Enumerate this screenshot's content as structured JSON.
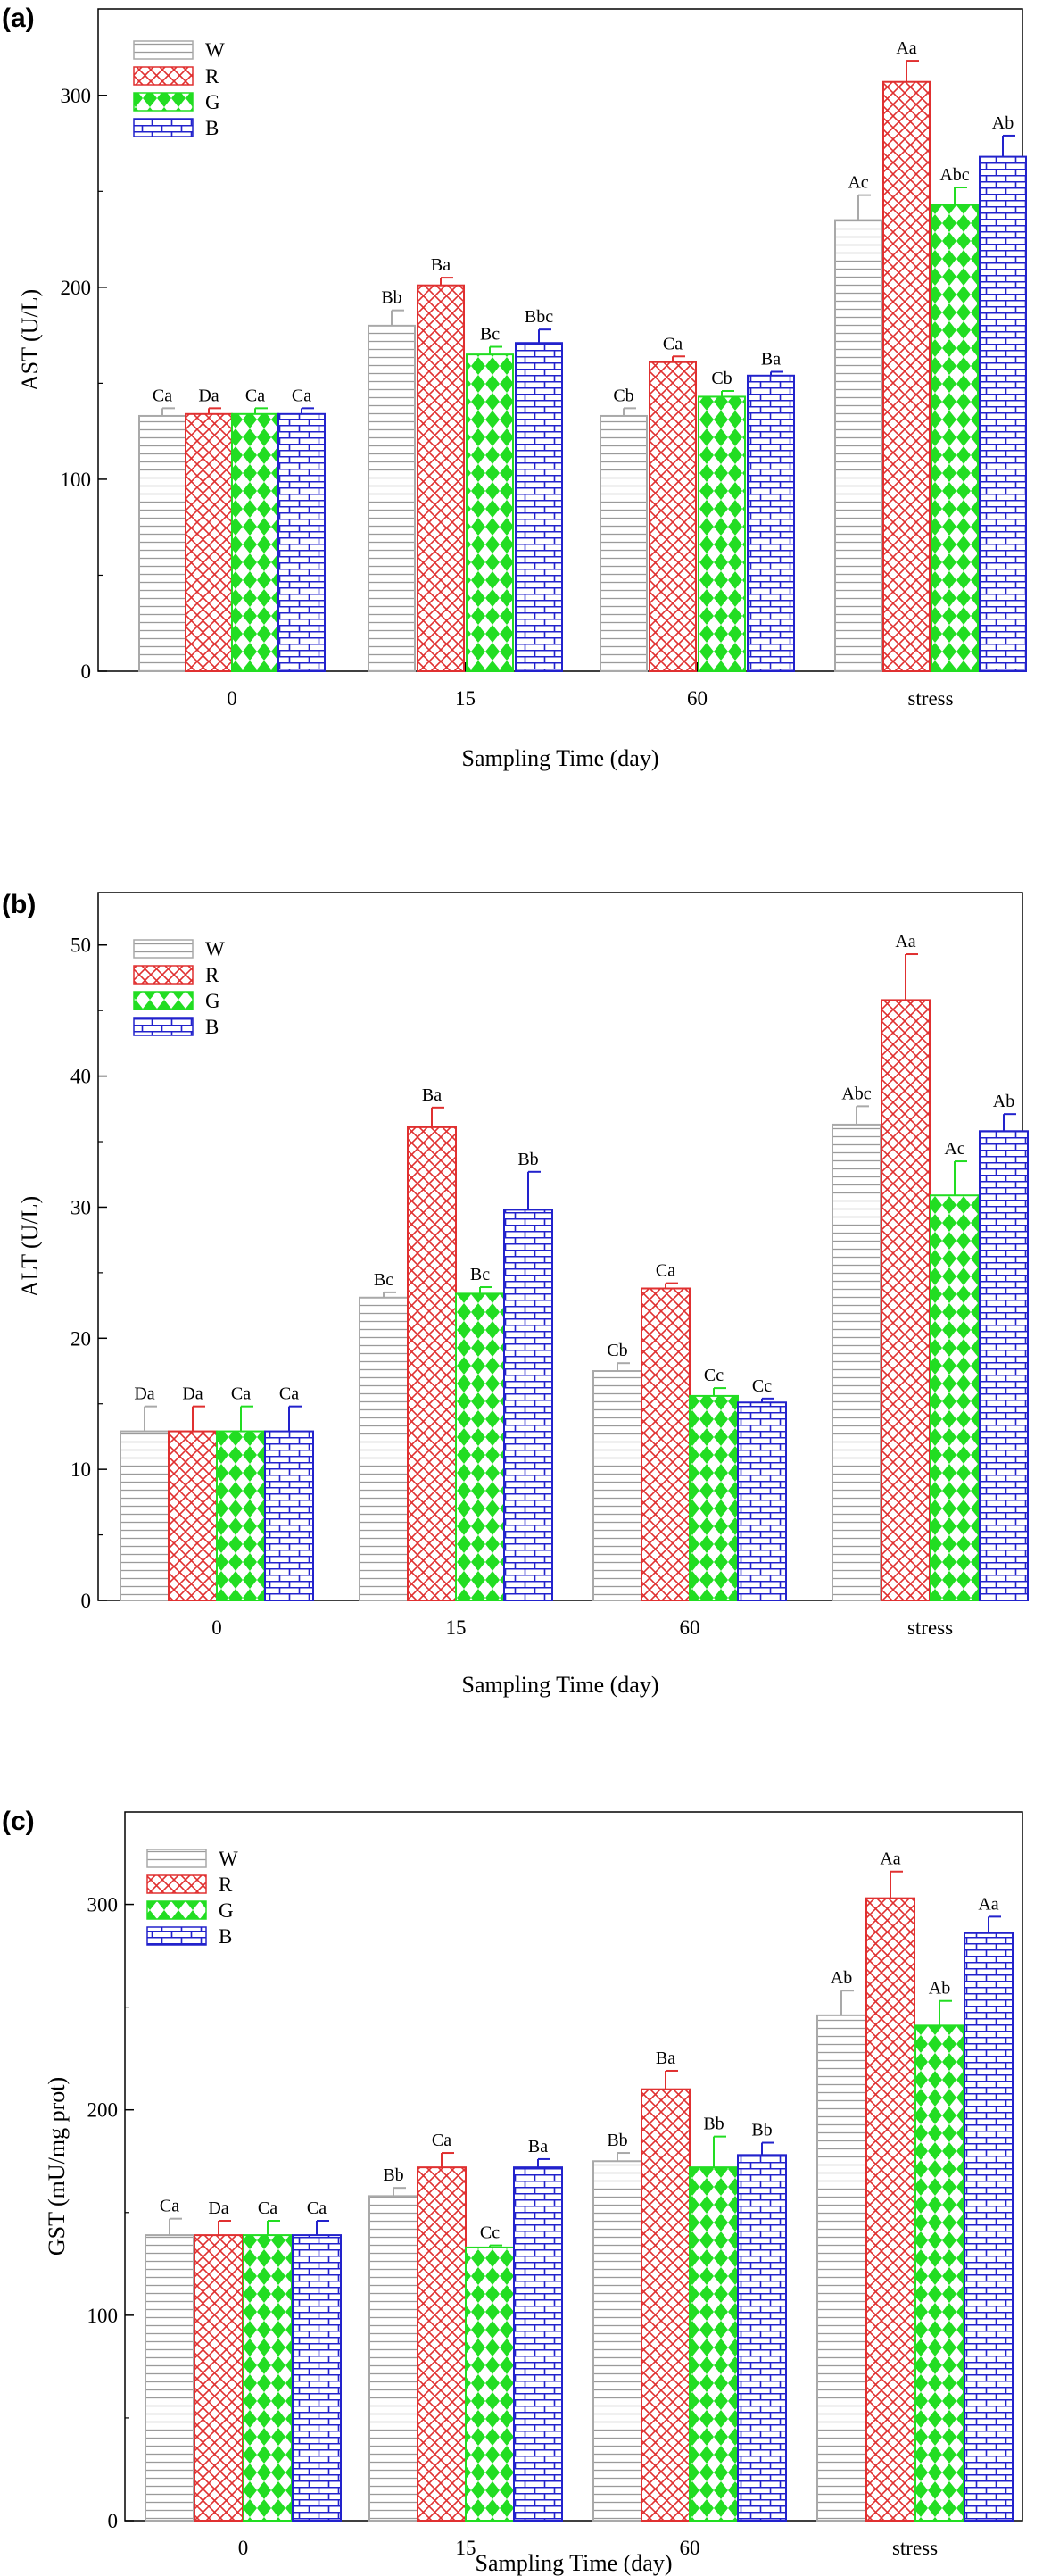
{
  "colors": {
    "W": "#a9a9a9",
    "R": "#e03030",
    "G": "#22dd22",
    "B": "#2222cc"
  },
  "chart_data": [
    {
      "type": "bar",
      "panel_label": "(a)",
      "xlabel": "Sampling Time (day)",
      "ylabel": "AST (U/L)",
      "categories": [
        "0",
        "15",
        "60",
        "stress"
      ],
      "ylim": [
        0,
        345
      ],
      "yticks": [
        0,
        100,
        200,
        300
      ],
      "legend_position": "top-left",
      "series": [
        {
          "name": "W",
          "values": [
            133,
            180,
            133,
            235
          ],
          "errors": [
            4,
            8,
            4,
            13
          ],
          "labels": [
            "Ca",
            "Bb",
            "Cb",
            "Ac"
          ]
        },
        {
          "name": "R",
          "values": [
            134,
            201,
            161,
            307
          ],
          "errors": [
            3,
            4,
            3,
            11
          ],
          "labels": [
            "Da",
            "Ba",
            "Ca",
            "Aa"
          ]
        },
        {
          "name": "G",
          "values": [
            134,
            165,
            143,
            243
          ],
          "errors": [
            3,
            4,
            3,
            9
          ],
          "labels": [
            "Ca",
            "Bc",
            "Cb",
            "Abc"
          ]
        },
        {
          "name": "B",
          "values": [
            134,
            171,
            154,
            268
          ],
          "errors": [
            3,
            7,
            2,
            11
          ],
          "labels": [
            "Ca",
            "Bbc",
            "Ba",
            "Ab"
          ]
        }
      ]
    },
    {
      "type": "bar",
      "panel_label": "(b)",
      "xlabel": "Sampling Time (day)",
      "ylabel": "ALT (U/L)",
      "categories": [
        "0",
        "15",
        "60",
        "stress"
      ],
      "ylim": [
        0,
        54
      ],
      "yticks": [
        0,
        10,
        20,
        30,
        40,
        50
      ],
      "legend_position": "top-left",
      "series": [
        {
          "name": "W",
          "values": [
            12.9,
            23.1,
            17.5,
            36.3
          ],
          "errors": [
            1.9,
            0.4,
            0.6,
            1.4
          ],
          "labels": [
            "Da",
            "Bc",
            "Cb",
            "Abc"
          ]
        },
        {
          "name": "R",
          "values": [
            12.9,
            36.1,
            23.8,
            45.8
          ],
          "errors": [
            1.9,
            1.5,
            0.4,
            3.5
          ],
          "labels": [
            "Da",
            "Ba",
            "Ca",
            "Aa"
          ]
        },
        {
          "name": "G",
          "values": [
            12.9,
            23.4,
            15.6,
            30.9
          ],
          "errors": [
            1.9,
            0.5,
            0.6,
            2.6
          ],
          "labels": [
            "Ca",
            "Bc",
            "Cc",
            "Ac"
          ]
        },
        {
          "name": "B",
          "values": [
            12.9,
            29.8,
            15.1,
            35.8
          ],
          "errors": [
            1.9,
            2.9,
            0.3,
            1.3
          ],
          "labels": [
            "Ca",
            "Bb",
            "Cc",
            "Ab"
          ]
        }
      ]
    },
    {
      "type": "bar",
      "panel_label": "(c)",
      "xlabel": "Sampling Time (day)",
      "ylabel": "GST (mU/mg prot)",
      "categories": [
        "0",
        "15",
        "60",
        "stress"
      ],
      "ylim": [
        0,
        345
      ],
      "yticks": [
        0,
        100,
        200,
        300
      ],
      "legend_position": "top-left",
      "series": [
        {
          "name": "W",
          "values": [
            139,
            158,
            175,
            246
          ],
          "errors": [
            8,
            4,
            4,
            12
          ],
          "labels": [
            "Ca",
            "Bb",
            "Bb",
            "Ab"
          ]
        },
        {
          "name": "R",
          "values": [
            139,
            172,
            210,
            303
          ],
          "errors": [
            7,
            7,
            9,
            13
          ],
          "labels": [
            "Da",
            "Ca",
            "Ba",
            "Aa"
          ]
        },
        {
          "name": "G",
          "values": [
            139,
            133,
            172,
            241
          ],
          "errors": [
            7,
            1,
            15,
            12
          ],
          "labels": [
            "Ca",
            "Cc",
            "Bb",
            "Ab"
          ]
        },
        {
          "name": "B",
          "values": [
            139,
            172,
            178,
            286
          ],
          "errors": [
            7,
            4,
            6,
            8
          ],
          "labels": [
            "Ca",
            "Ba",
            "Bb",
            "Aa"
          ]
        }
      ]
    }
  ]
}
